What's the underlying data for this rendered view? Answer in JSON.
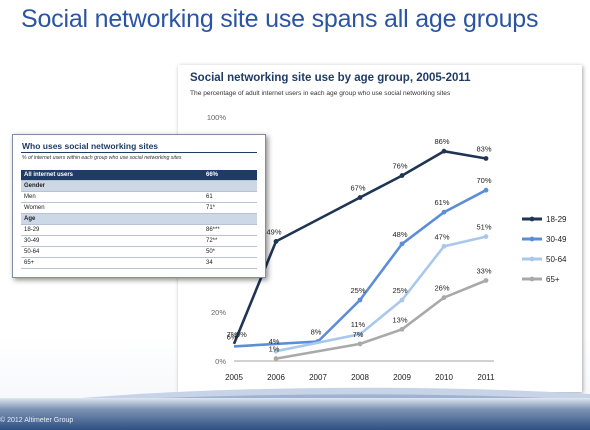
{
  "slide": {
    "title": "Social networking site use spans all age groups",
    "copyright": "© 2012 Altimeter Group"
  },
  "table": {
    "title": "Who uses social networking sites",
    "subtitle": "% of internet users within each group who use social networking sites",
    "rows": [
      {
        "label": "All internet users",
        "value": "66%",
        "kind": "header"
      },
      {
        "label": "Gender",
        "value": "",
        "kind": "group"
      },
      {
        "label": "Men",
        "value": "61",
        "kind": "row"
      },
      {
        "label": "Women",
        "value": "71*",
        "kind": "row"
      },
      {
        "label": "Age",
        "value": "",
        "kind": "group"
      },
      {
        "label": "18-29",
        "value": "86***",
        "kind": "row"
      },
      {
        "label": "30-49",
        "value": "72**",
        "kind": "row"
      },
      {
        "label": "50-64",
        "value": "50*",
        "kind": "row"
      },
      {
        "label": "65+",
        "value": "34",
        "kind": "row"
      }
    ]
  },
  "chart_data": {
    "type": "line",
    "title": "Social networking site use by age group, 2005-2011",
    "subtitle": "The percentage of adult internet users in each age group who use social networking sites",
    "x": [
      2005,
      2006,
      2007,
      2008,
      2009,
      2010,
      2011
    ],
    "ylim": [
      0,
      100
    ],
    "yticks": [
      "0%",
      "20%",
      "100%"
    ],
    "legend_position": "right",
    "series": [
      {
        "name": "18-29",
        "color": "#1f3554",
        "values": [
          7,
          49,
          null,
          67,
          76,
          86,
          83
        ],
        "labels": [
          "7%",
          "49%",
          "",
          "67%",
          "76%",
          "86%",
          "83%"
        ]
      },
      {
        "name": "30-49",
        "color": "#5b8ed6",
        "values": [
          6,
          null,
          8,
          25,
          48,
          61,
          70
        ],
        "labels": [
          "6%",
          "",
          "8%",
          "25%",
          "48%",
          "61%",
          "70%"
        ]
      },
      {
        "name": "50-64",
        "color": "#aac8ec",
        "values": [
          null,
          4,
          null,
          11,
          25,
          47,
          51
        ],
        "labels": [
          "",
          "4%",
          "",
          "11%",
          "25%",
          "47%",
          "51%"
        ]
      },
      {
        "name": "65+",
        "color": "#a9a9a9",
        "values": [
          null,
          1,
          null,
          7,
          13,
          26,
          33
        ],
        "labels": [
          "",
          "1%",
          "",
          "7%",
          "13%",
          "26%",
          "33%"
        ]
      }
    ],
    "extra_labels": [
      "9%"
    ]
  }
}
